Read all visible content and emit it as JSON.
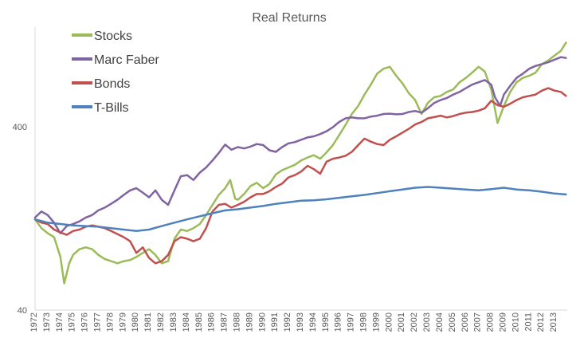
{
  "chart_data": {
    "type": "line",
    "title": "Real Returns",
    "xlabel": "",
    "ylabel": "",
    "y_scale": "log",
    "ylim": [
      40,
      1400
    ],
    "xlim": [
      1972,
      2014
    ],
    "y_ticks": [
      40,
      400
    ],
    "x_ticks": [
      "1972",
      "1973",
      "1974",
      "1975",
      "1976",
      "1977",
      "1978",
      "1979",
      "1980",
      "1981",
      "1982",
      "1983",
      "1984",
      "1985",
      "1986",
      "1987",
      "1988",
      "1989",
      "1990",
      "1991",
      "1992",
      "1993",
      "1994",
      "1995",
      "1996",
      "1997",
      "1998",
      "1999",
      "2000",
      "2001",
      "2002",
      "2003",
      "2004",
      "2005",
      "2006",
      "2007",
      "2008",
      "2009",
      "2010",
      "2011",
      "2012",
      "2013"
    ],
    "grid": false,
    "legend_position": "top-left",
    "series": [
      {
        "name": "Stocks",
        "color": "#9BBB59",
        "x": [
          1972.0,
          1972.5,
          1973.0,
          1973.5,
          1974.0,
          1974.3,
          1974.7,
          1975.0,
          1975.5,
          1976.0,
          1976.5,
          1977.0,
          1977.5,
          1978.0,
          1978.5,
          1979.0,
          1979.5,
          1980.0,
          1980.5,
          1981.0,
          1981.5,
          1982.0,
          1982.5,
          1983.0,
          1983.5,
          1984.0,
          1984.5,
          1985.0,
          1985.5,
          1986.0,
          1986.5,
          1987.0,
          1987.4,
          1987.8,
          1988.0,
          1988.5,
          1989.0,
          1989.5,
          1990.0,
          1990.5,
          1991.0,
          1991.5,
          1992.0,
          1992.5,
          1993.0,
          1993.5,
          1994.0,
          1994.5,
          1995.0,
          1995.5,
          1996.0,
          1996.5,
          1997.0,
          1997.5,
          1998.0,
          1998.5,
          1999.0,
          1999.5,
          2000.0,
          2000.5,
          2001.0,
          2001.5,
          2002.0,
          2002.5,
          2003.0,
          2003.5,
          2004.0,
          2004.5,
          2005.0,
          2005.5,
          2006.0,
          2006.5,
          2007.0,
          2007.5,
          2008.0,
          2008.5,
          2009.0,
          2009.5,
          2010.0,
          2010.5,
          2011.0,
          2011.5,
          2012.0,
          2012.5,
          2013.0,
          2013.5,
          2013.9
        ],
        "values": [
          125,
          112,
          105,
          100,
          78,
          56,
          72,
          80,
          86,
          88,
          86,
          80,
          76,
          74,
          72,
          74,
          75,
          78,
          82,
          86,
          80,
          72,
          74,
          98,
          110,
          108,
          112,
          118,
          132,
          150,
          170,
          185,
          205,
          162,
          160,
          172,
          190,
          198,
          185,
          195,
          220,
          232,
          240,
          248,
          262,
          272,
          280,
          268,
          290,
          318,
          360,
          410,
          470,
          520,
          600,
          680,
          780,
          830,
          850,
          760,
          690,
          610,
          560,
          470,
          540,
          580,
          590,
          620,
          640,
          700,
          740,
          790,
          850,
          800,
          640,
          420,
          520,
          620,
          700,
          740,
          760,
          790,
          880,
          920,
          980,
          1040,
          1150
        ]
      },
      {
        "name": "Marc Faber",
        "color": "#8064A2",
        "x": [
          1972.0,
          1972.5,
          1973.0,
          1973.5,
          1974.0,
          1974.5,
          1975.0,
          1975.5,
          1976.0,
          1976.5,
          1977.0,
          1977.5,
          1978.0,
          1978.5,
          1979.0,
          1979.5,
          1980.0,
          1980.5,
          1981.0,
          1981.5,
          1982.0,
          1982.5,
          1983.0,
          1983.5,
          1984.0,
          1984.5,
          1985.0,
          1985.5,
          1986.0,
          1986.5,
          1987.0,
          1987.5,
          1988.0,
          1988.5,
          1989.0,
          1989.5,
          1990.0,
          1990.5,
          1991.0,
          1991.5,
          1992.0,
          1992.5,
          1993.0,
          1993.5,
          1994.0,
          1994.5,
          1995.0,
          1995.5,
          1996.0,
          1996.5,
          1997.0,
          1997.5,
          1998.0,
          1998.5,
          1999.0,
          1999.5,
          2000.0,
          2000.5,
          2001.0,
          2001.5,
          2002.0,
          2002.5,
          2003.0,
          2003.5,
          2004.0,
          2004.5,
          2005.0,
          2005.5,
          2006.0,
          2006.5,
          2007.0,
          2007.5,
          2008.0,
          2008.3,
          2008.7,
          2009.0,
          2009.5,
          2010.0,
          2010.5,
          2011.0,
          2011.5,
          2012.0,
          2012.5,
          2013.0,
          2013.5,
          2013.9
        ],
        "values": [
          128,
          138,
          132,
          120,
          105,
          115,
          118,
          122,
          128,
          132,
          140,
          145,
          152,
          160,
          170,
          180,
          185,
          175,
          165,
          180,
          160,
          150,
          180,
          215,
          218,
          205,
          225,
          240,
          262,
          288,
          320,
          300,
          310,
          305,
          312,
          322,
          318,
          298,
          292,
          310,
          325,
          330,
          340,
          350,
          355,
          365,
          378,
          398,
          425,
          445,
          450,
          445,
          445,
          455,
          460,
          470,
          472,
          468,
          470,
          482,
          488,
          478,
          505,
          540,
          560,
          575,
          600,
          620,
          650,
          680,
          700,
          720,
          680,
          580,
          520,
          600,
          670,
          740,
          780,
          830,
          860,
          880,
          900,
          930,
          960,
          950
        ]
      },
      {
        "name": "Bonds",
        "color": "#C0504D",
        "x": [
          1972.0,
          1972.5,
          1973.0,
          1973.5,
          1974.0,
          1974.5,
          1975.0,
          1975.5,
          1976.0,
          1976.5,
          1977.0,
          1977.5,
          1978.0,
          1978.5,
          1979.0,
          1979.5,
          1980.0,
          1980.5,
          1981.0,
          1981.5,
          1982.0,
          1982.5,
          1983.0,
          1983.5,
          1984.0,
          1984.5,
          1985.0,
          1985.5,
          1986.0,
          1986.5,
          1987.0,
          1987.5,
          1988.0,
          1988.5,
          1989.0,
          1989.5,
          1990.0,
          1990.5,
          1991.0,
          1991.5,
          1992.0,
          1992.5,
          1993.0,
          1993.5,
          1994.0,
          1994.5,
          1995.0,
          1995.5,
          1996.0,
          1996.5,
          1997.0,
          1997.5,
          1998.0,
          1998.5,
          1999.0,
          1999.5,
          2000.0,
          2000.5,
          2001.0,
          2001.5,
          2002.0,
          2002.5,
          2003.0,
          2003.5,
          2004.0,
          2004.5,
          2005.0,
          2005.5,
          2006.0,
          2006.5,
          2007.0,
          2007.5,
          2008.0,
          2008.5,
          2009.0,
          2009.5,
          2010.0,
          2010.5,
          2011.0,
          2011.5,
          2012.0,
          2012.5,
          2013.0,
          2013.5,
          2013.9
        ],
        "values": [
          125,
          120,
          118,
          110,
          106,
          103,
          108,
          110,
          114,
          116,
          114,
          112,
          108,
          104,
          100,
          95,
          82,
          88,
          77,
          72,
          74,
          80,
          95,
          100,
          98,
          95,
          98,
          112,
          138,
          150,
          152,
          145,
          150,
          156,
          165,
          172,
          172,
          178,
          188,
          196,
          212,
          218,
          228,
          245,
          235,
          222,
          258,
          268,
          272,
          278,
          292,
          318,
          345,
          332,
          322,
          318,
          340,
          355,
          372,
          390,
          412,
          425,
          445,
          452,
          460,
          450,
          458,
          470,
          478,
          482,
          490,
          505,
          555,
          525,
          515,
          535,
          560,
          580,
          590,
          600,
          630,
          650,
          630,
          620,
          590
        ]
      },
      {
        "name": "T-Bills",
        "color": "#4F81BD",
        "x": [
          1972,
          1973,
          1974,
          1975,
          1976,
          1977,
          1978,
          1979,
          1980,
          1981,
          1982,
          1983,
          1984,
          1985,
          1986,
          1987,
          1988,
          1989,
          1990,
          1991,
          1992,
          1993,
          1994,
          1995,
          1996,
          1997,
          1998,
          1999,
          2000,
          2001,
          2002,
          2003,
          2004,
          2005,
          2006,
          2007,
          2008,
          2009,
          2010,
          2011,
          2012,
          2013,
          2013.9
        ],
        "values": [
          125,
          120,
          118,
          116,
          115,
          114,
          112,
          110,
          108,
          110,
          115,
          120,
          125,
          130,
          135,
          140,
          142,
          145,
          148,
          152,
          155,
          158,
          159,
          161,
          164,
          167,
          170,
          174,
          178,
          182,
          186,
          188,
          186,
          184,
          182,
          180,
          183,
          186,
          182,
          180,
          177,
          173,
          171
        ]
      }
    ]
  }
}
